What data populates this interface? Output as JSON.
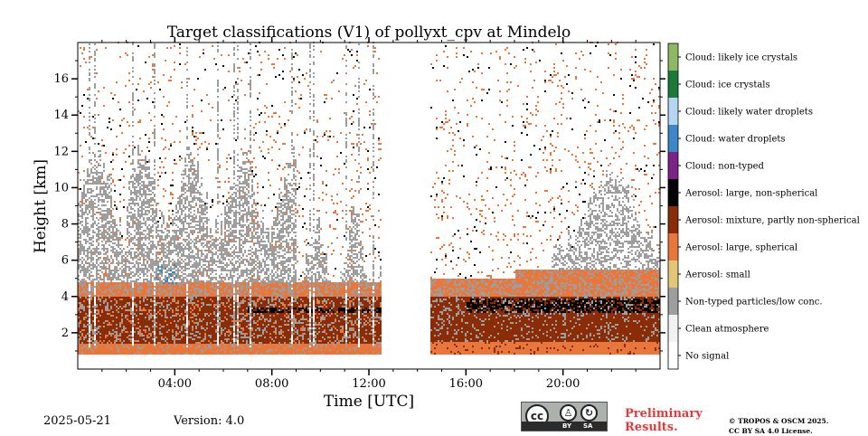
{
  "chart_data": {
    "type": "heatmap",
    "title": "Target classifications (V1) of pollyxt_cpv at Mindelo",
    "xlabel": "Time [UTC]",
    "ylabel": "Height [km]",
    "xlim": [
      0,
      24
    ],
    "ylim": [
      0,
      18
    ],
    "x_ticks": [
      4,
      8,
      12,
      16,
      20
    ],
    "x_tick_labels": [
      "04:00",
      "08:00",
      "12:00",
      "16:00",
      "20:00"
    ],
    "y_ticks": [
      2,
      4,
      6,
      8,
      10,
      12,
      14,
      16
    ],
    "y_tick_labels": [
      "2",
      "4",
      "6",
      "8",
      "10",
      "12",
      "14",
      "16"
    ],
    "data_gap_hours": [
      12.5,
      14.5
    ],
    "legend": [
      {
        "label": "Cloud: likely ice crystals",
        "color": "#8fb865"
      },
      {
        "label": "Cloud: ice crystals",
        "color": "#1b7a3a"
      },
      {
        "label": "Cloud: likely water droplets",
        "color": "#b3d6f2"
      },
      {
        "label": "Cloud: water droplets",
        "color": "#3b87c8"
      },
      {
        "label": "Cloud: non-typed",
        "color": "#7b2387"
      },
      {
        "label": "Aerosol: large, non-spherical",
        "color": "#050505"
      },
      {
        "label": "Aerosol: mixture, partly non-spherical",
        "color": "#8a2c05"
      },
      {
        "label": "Aerosol: large, spherical",
        "color": "#e9763b"
      },
      {
        "label": "Aerosol: small",
        "color": "#e3c676"
      },
      {
        "label": "Non-typed particles/low conc.",
        "color": "#9e9e9e"
      },
      {
        "label": "Clean atmosphere",
        "color": "#f2f2f2"
      },
      {
        "label": "No signal",
        "color": "#ffffff"
      }
    ],
    "layers_km": [
      {
        "class": "Aerosol: large, spherical",
        "from": 0.8,
        "to": 1.5
      },
      {
        "class": "Aerosol: mixture, partly non-spherical",
        "from": 1.5,
        "to": 4.0
      },
      {
        "class": "Aerosol: large, spherical",
        "from": 4.0,
        "to": 4.8
      },
      {
        "class": "Non-typed particles/low conc.",
        "from": 4.8,
        "to": 10.0
      }
    ]
  },
  "footer": {
    "date": "2025-05-21",
    "version": "Version: 4.0",
    "preliminary_line1": "Preliminary",
    "preliminary_line2": "Results.",
    "copyright_line1": "© TROPOS & OSCM 2025.",
    "copyright_line2": "CC BY SA 4.0 License.",
    "cc_text": "cc",
    "cc_by": "BY",
    "cc_sa": "SA"
  }
}
